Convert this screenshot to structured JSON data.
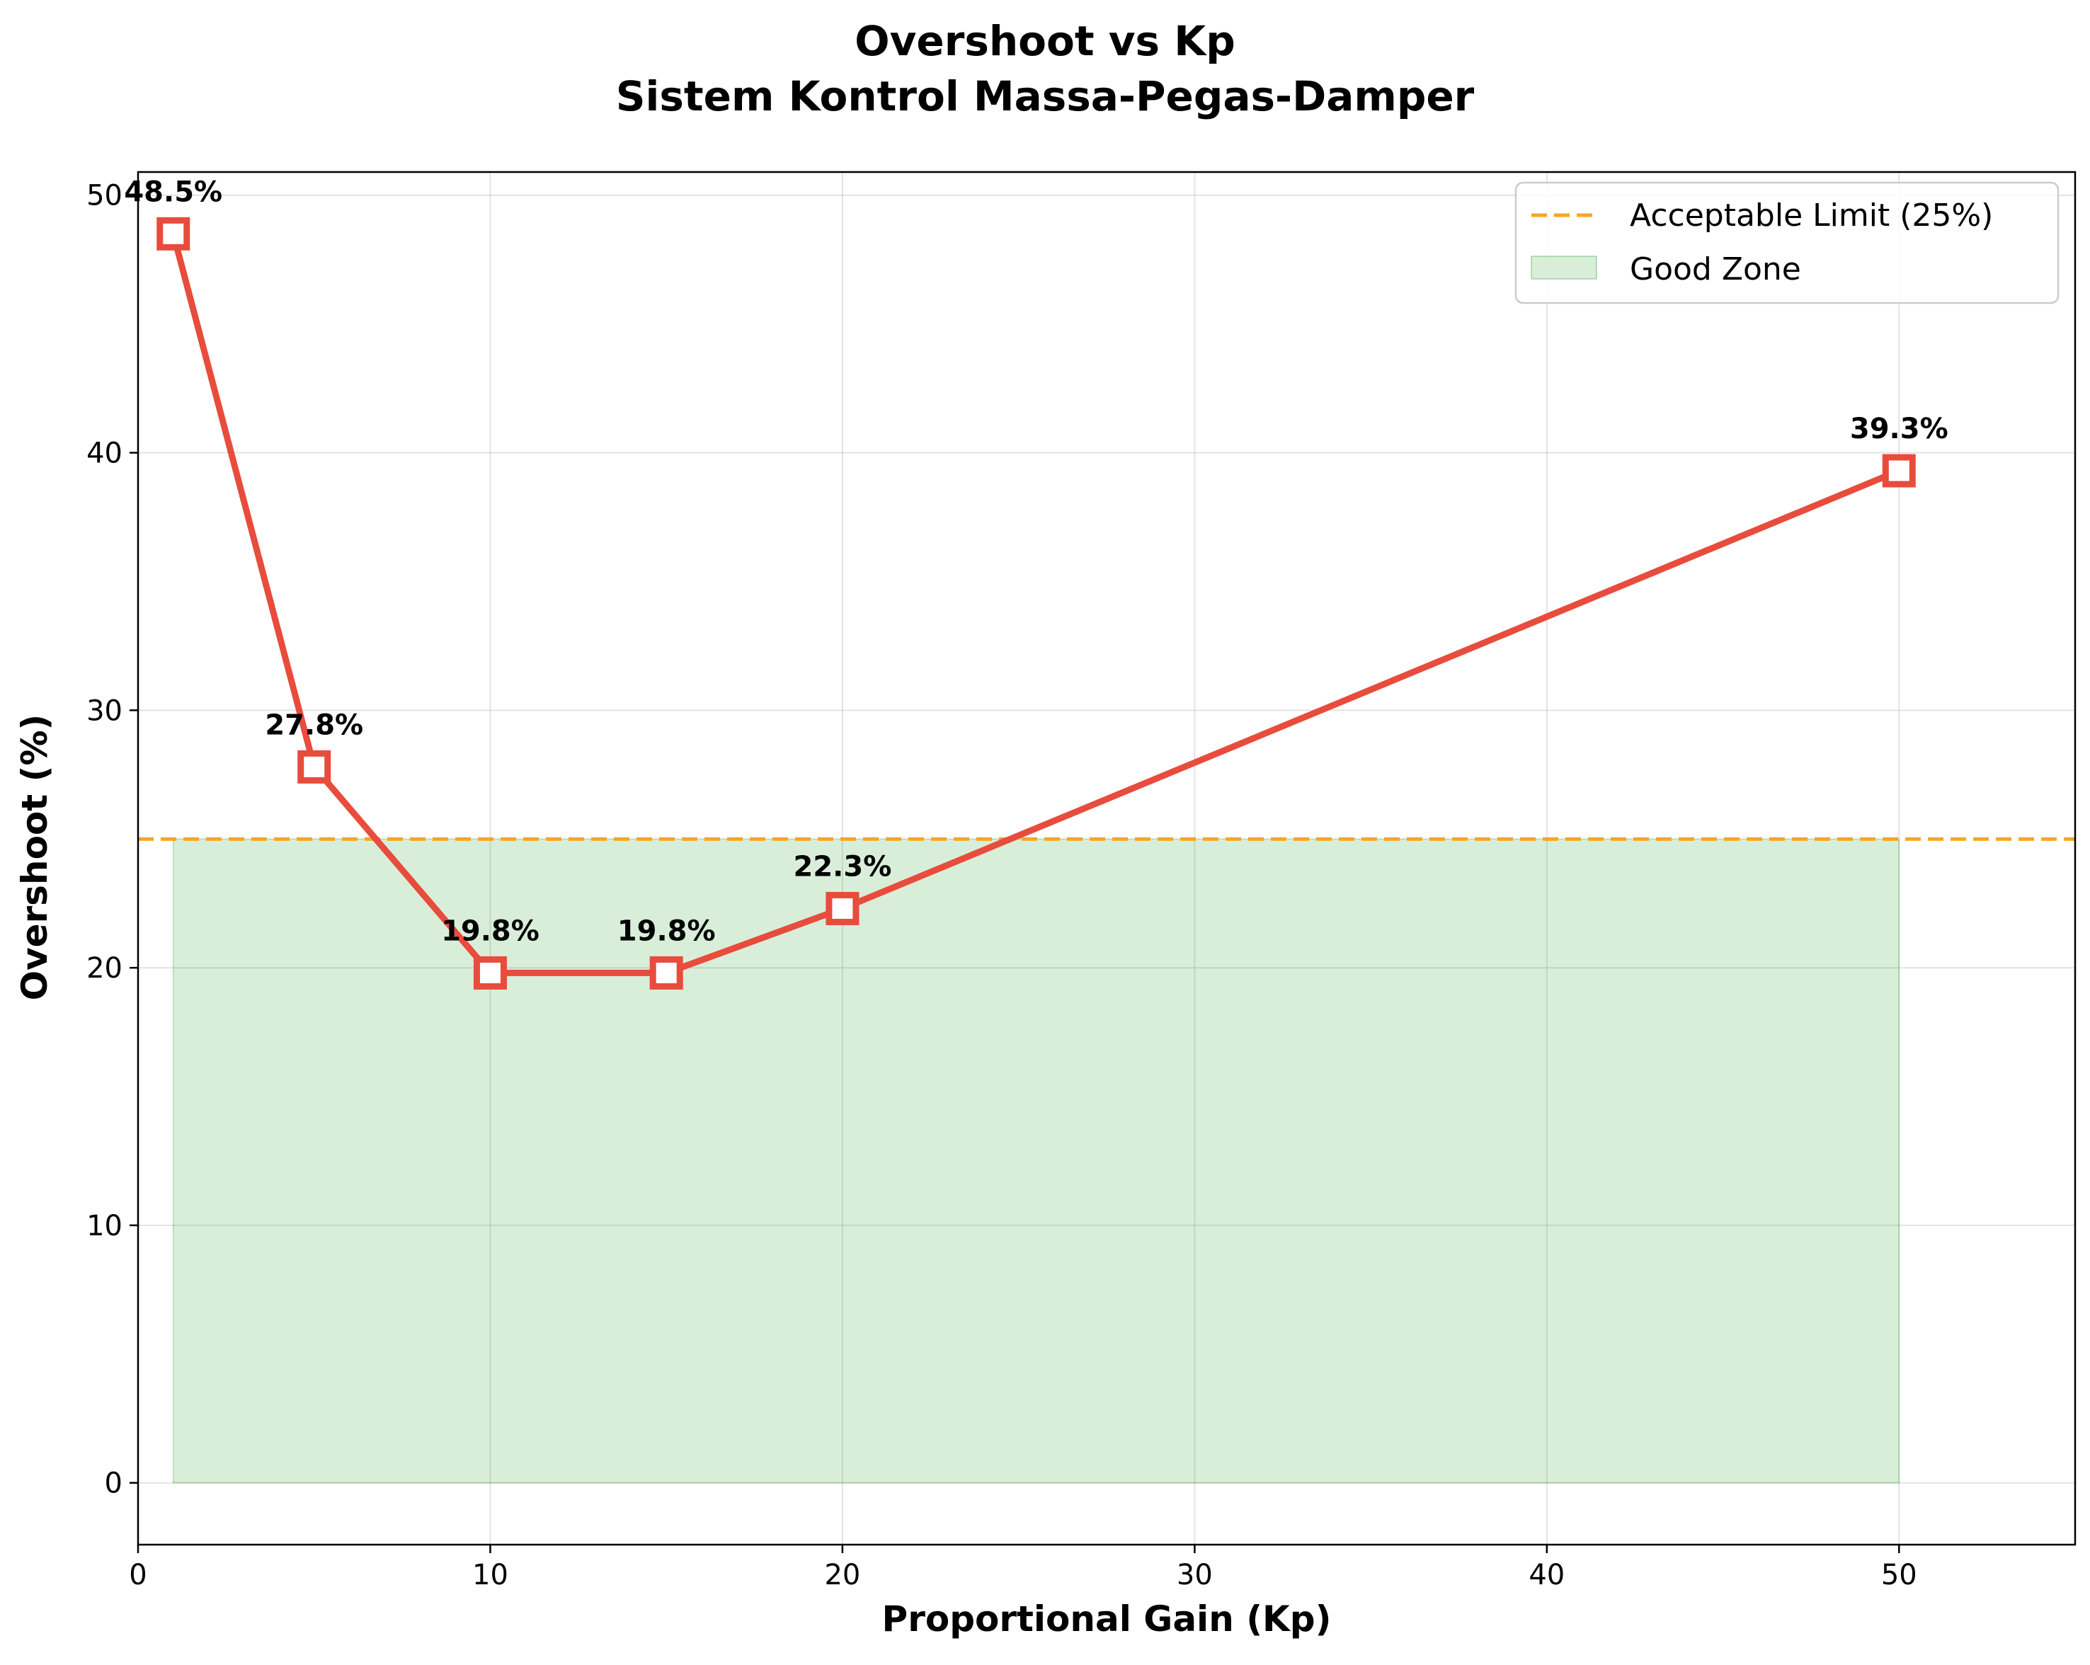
{
  "chart_data": {
    "type": "line",
    "title": "Overshoot vs Kp",
    "subtitle": "Sistem Kontrol Massa-Pegas-Damper",
    "xlabel": "Proportional Gain (Kp)",
    "ylabel": "Overshoot (%)",
    "xlim": [
      0,
      55
    ],
    "ylim": [
      -2.4,
      50.9
    ],
    "xticks": [
      0,
      10,
      20,
      30,
      40,
      50
    ],
    "yticks": [
      0,
      10,
      20,
      30,
      40,
      50
    ],
    "grid": true,
    "legend_position": "top-right",
    "series": [
      {
        "x": [
          1,
          5,
          10,
          15,
          20,
          50
        ],
        "values": [
          48.5,
          27.8,
          19.8,
          19.8,
          22.3,
          39.3
        ],
        "labels": [
          "48.5%",
          "27.8%",
          "19.8%",
          "19.8%",
          "22.3%",
          "39.3%"
        ],
        "color": "#e74c3c",
        "marker": "square-hollow"
      }
    ],
    "reference_line": {
      "name": "Acceptable Limit (25%)",
      "y": 25,
      "color": "#f5a623",
      "style": "dashed"
    },
    "shaded_region": {
      "name": "Good Zone",
      "x_range": [
        1,
        50
      ],
      "y_range": [
        0,
        25
      ],
      "color": "#2ca02c"
    }
  }
}
